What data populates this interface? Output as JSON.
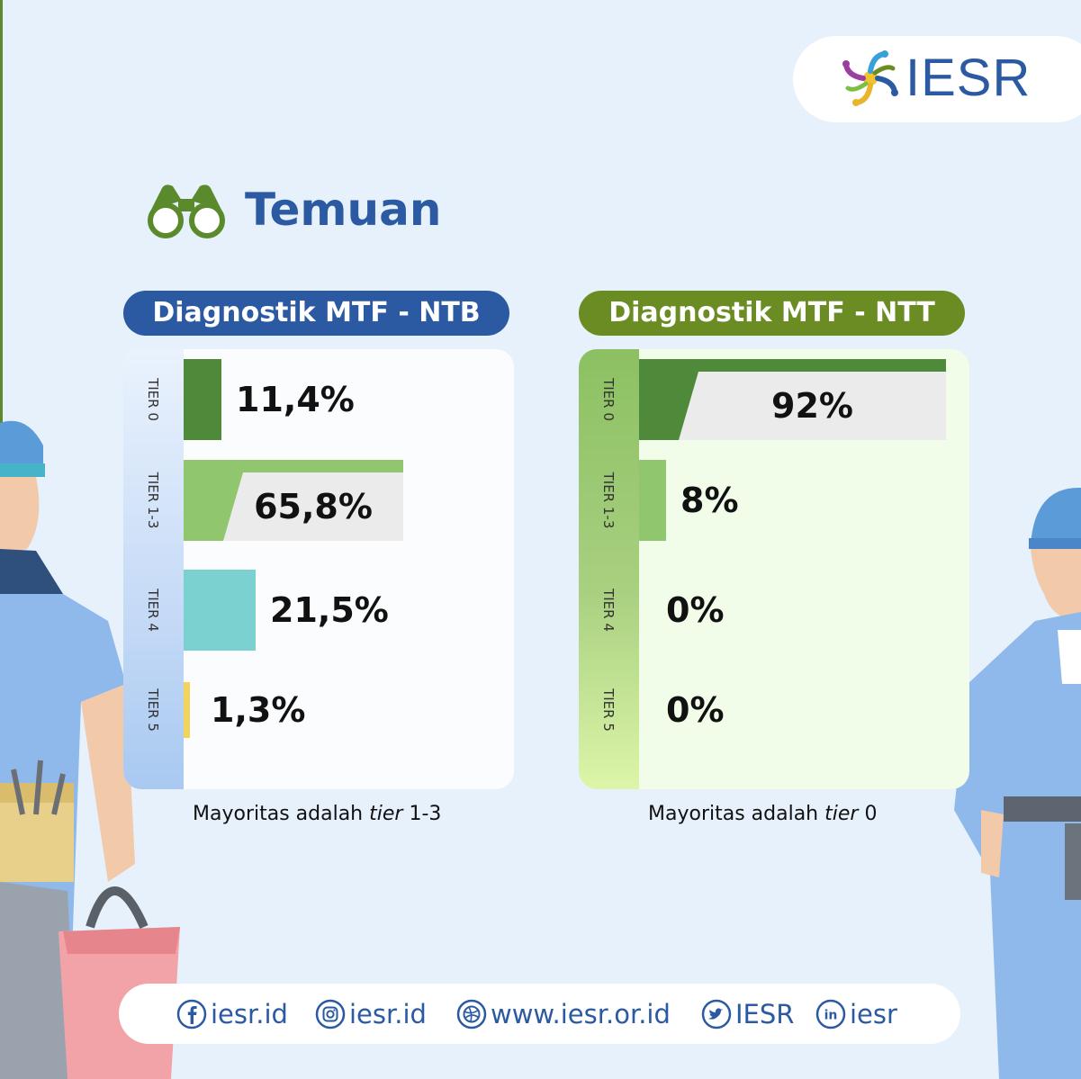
{
  "brand": {
    "logo_text": "IESR"
  },
  "section": {
    "title": "Temuan",
    "icon": "binoculars-icon"
  },
  "colors": {
    "brand_blue": "#2b5aa3",
    "brand_green": "#6a8c22",
    "tier0": "#4f8a3a",
    "tier1_3": "#8fc66e",
    "tier4": "#7bd0d0",
    "tier5": "#f2d35b",
    "plaque": "#ebebeb"
  },
  "chart_data": [
    {
      "type": "bar",
      "orientation": "horizontal",
      "title": "Diagnostik MTF - NTB",
      "categories": [
        "TIER 0",
        "TIER 1-3",
        "TIER 4",
        "TIER 5"
      ],
      "values": [
        11.4,
        65.8,
        21.5,
        1.3
      ],
      "value_labels": [
        "11,4%",
        "65,8%",
        "21,5%",
        "1,3%"
      ],
      "caption_prefix": "Mayoritas adalah ",
      "caption_emphasis": "tier",
      "caption_suffix": " 1-3"
    },
    {
      "type": "bar",
      "orientation": "horizontal",
      "title": "Diagnostik MTF - NTT",
      "categories": [
        "TIER 0",
        "TIER 1-3",
        "TIER 4",
        "TIER 5"
      ],
      "values": [
        92,
        8,
        0,
        0
      ],
      "value_labels": [
        "92%",
        "8%",
        "0%",
        "0%"
      ],
      "caption_prefix": "Mayoritas adalah ",
      "caption_emphasis": "tier",
      "caption_suffix": " 0"
    }
  ],
  "footer": {
    "socials": [
      {
        "icon": "facebook-icon",
        "label": "iesr.id"
      },
      {
        "icon": "instagram-icon",
        "label": "iesr.id"
      },
      {
        "icon": "web-icon",
        "label": "www.iesr.or.id"
      },
      {
        "icon": "twitter-icon",
        "label": "IESR"
      },
      {
        "icon": "linkedin-icon",
        "label": "iesr"
      }
    ]
  }
}
